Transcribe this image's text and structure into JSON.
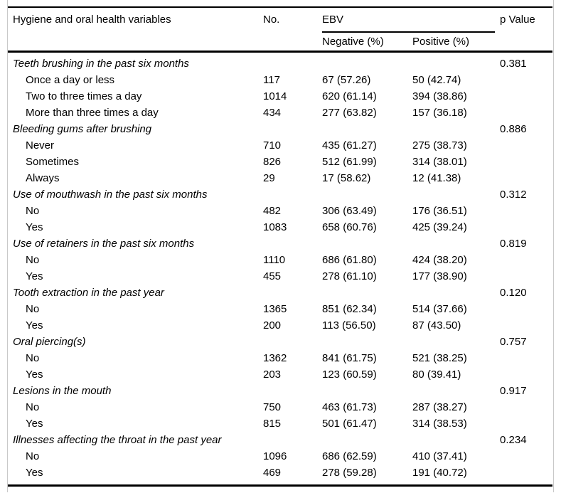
{
  "table": {
    "header": {
      "variables": "Hygiene and oral health variables",
      "no": "No.",
      "ebv": "EBV",
      "negative": "Negative (%)",
      "positive": "Positive (%)",
      "p_value": "p Value"
    },
    "rows": [
      {
        "type": "category",
        "label": "Teeth brushing in the past six months",
        "p": "0.381"
      },
      {
        "type": "item",
        "label": "Once a day or less",
        "no": "117",
        "negative": "67 (57.26)",
        "positive": "50 (42.74)"
      },
      {
        "type": "item",
        "label": "Two to three times a day",
        "no": "1014",
        "negative": "620 (61.14)",
        "positive": "394 (38.86)"
      },
      {
        "type": "item",
        "label": "More than three times a day",
        "no": "434",
        "negative": "277 (63.82)",
        "positive": "157 (36.18)"
      },
      {
        "type": "category",
        "label": "Bleeding gums after brushing",
        "p": "0.886"
      },
      {
        "type": "item",
        "label": "Never",
        "no": "710",
        "negative": "435 (61.27)",
        "positive": "275 (38.73)"
      },
      {
        "type": "item",
        "label": "Sometimes",
        "no": "826",
        "negative": "512 (61.99)",
        "positive": "314 (38.01)"
      },
      {
        "type": "item",
        "label": "Always",
        "no": "29",
        "negative": "17 (58.62)",
        "positive": "12 (41.38)"
      },
      {
        "type": "category",
        "label": "Use of mouthwash in the past six months",
        "p": "0.312"
      },
      {
        "type": "item",
        "label": "No",
        "no": "482",
        "negative": "306 (63.49)",
        "positive": "176 (36.51)"
      },
      {
        "type": "item",
        "label": "Yes",
        "no": "1083",
        "negative": "658 (60.76)",
        "positive": "425 (39.24)"
      },
      {
        "type": "category",
        "label": "Use of retainers in the past six months",
        "p": "0.819"
      },
      {
        "type": "item",
        "label": "No",
        "no": "1110",
        "negative": "686 (61.80)",
        "positive": "424 (38.20)"
      },
      {
        "type": "item",
        "label": "Yes",
        "no": "455",
        "negative": "278 (61.10)",
        "positive": "177 (38.90)"
      },
      {
        "type": "category",
        "label": "Tooth extraction in the past year",
        "p": "0.120"
      },
      {
        "type": "item",
        "label": "No",
        "no": "1365",
        "negative": "851 (62.34)",
        "positive": "514 (37.66)"
      },
      {
        "type": "item",
        "label": "Yes",
        "no": "200",
        "negative": "113 (56.50)",
        "positive": "87 (43.50)"
      },
      {
        "type": "category",
        "label": "Oral piercing(s)",
        "p": "0.757"
      },
      {
        "type": "item",
        "label": "No",
        "no": "1362",
        "negative": "841 (61.75)",
        "positive": "521 (38.25)"
      },
      {
        "type": "item",
        "label": "Yes",
        "no": "203",
        "negative": "123 (60.59)",
        "positive": "80 (39.41)"
      },
      {
        "type": "category",
        "label": "Lesions in the mouth",
        "p": "0.917"
      },
      {
        "type": "item",
        "label": "No",
        "no": "750",
        "negative": "463 (61.73)",
        "positive": "287 (38.27)"
      },
      {
        "type": "item",
        "label": "Yes",
        "no": "815",
        "negative": "501 (61.47)",
        "positive": "314 (38.53)"
      },
      {
        "type": "category",
        "label": "Illnesses affecting the throat in the past year",
        "p": "0.234"
      },
      {
        "type": "item",
        "label": "No",
        "no": "1096",
        "negative": "686 (62.59)",
        "positive": "410 (37.41)"
      },
      {
        "type": "item",
        "label": "Yes",
        "no": "469",
        "negative": "278 (59.28)",
        "positive": "191 (40.72)"
      }
    ]
  }
}
